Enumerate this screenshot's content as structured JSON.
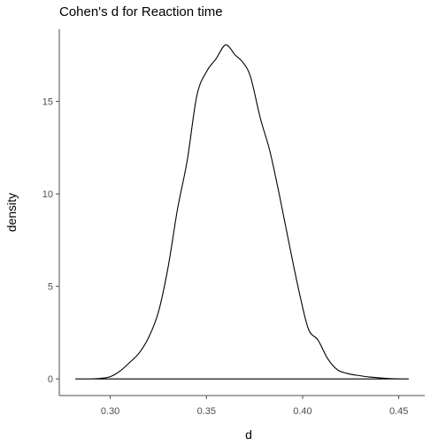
{
  "chart_data": {
    "type": "area",
    "title": "Cohen's d for Reaction time",
    "xlabel": "d",
    "ylabel": "density",
    "xlim": [
      0.2735,
      0.4635
    ],
    "ylim": [
      -0.9,
      18.9
    ],
    "x_ticks": [
      0.3,
      0.35,
      0.4,
      0.45
    ],
    "x_tick_labels": [
      "0.30",
      "0.35",
      "0.40",
      "0.45"
    ],
    "y_ticks": [
      0,
      5,
      10,
      15
    ],
    "y_tick_labels": [
      "0",
      "5",
      "10",
      "15"
    ],
    "grid": false,
    "legend": "none",
    "line_color": "#000000",
    "series": [
      {
        "x": [
          0.282,
          0.29,
          0.295,
          0.3,
          0.305,
          0.31,
          0.315,
          0.32,
          0.325,
          0.33,
          0.335,
          0.34,
          0.345,
          0.35,
          0.355,
          0.36,
          0.365,
          0.369,
          0.373,
          0.378,
          0.383,
          0.388,
          0.393,
          0.398,
          0.403,
          0.408,
          0.413,
          0.418,
          0.423,
          0.428,
          0.435,
          0.445,
          0.455
        ],
        "y": [
          0.0,
          0.0,
          0.03,
          0.12,
          0.42,
          0.88,
          1.4,
          2.25,
          3.6,
          6.0,
          9.2,
          11.8,
          15.3,
          16.6,
          17.3,
          18.05,
          17.5,
          17.1,
          16.3,
          14.1,
          12.3,
          9.9,
          7.3,
          4.8,
          2.7,
          2.1,
          1.1,
          0.5,
          0.3,
          0.2,
          0.1,
          0.02,
          0.0
        ]
      }
    ]
  }
}
